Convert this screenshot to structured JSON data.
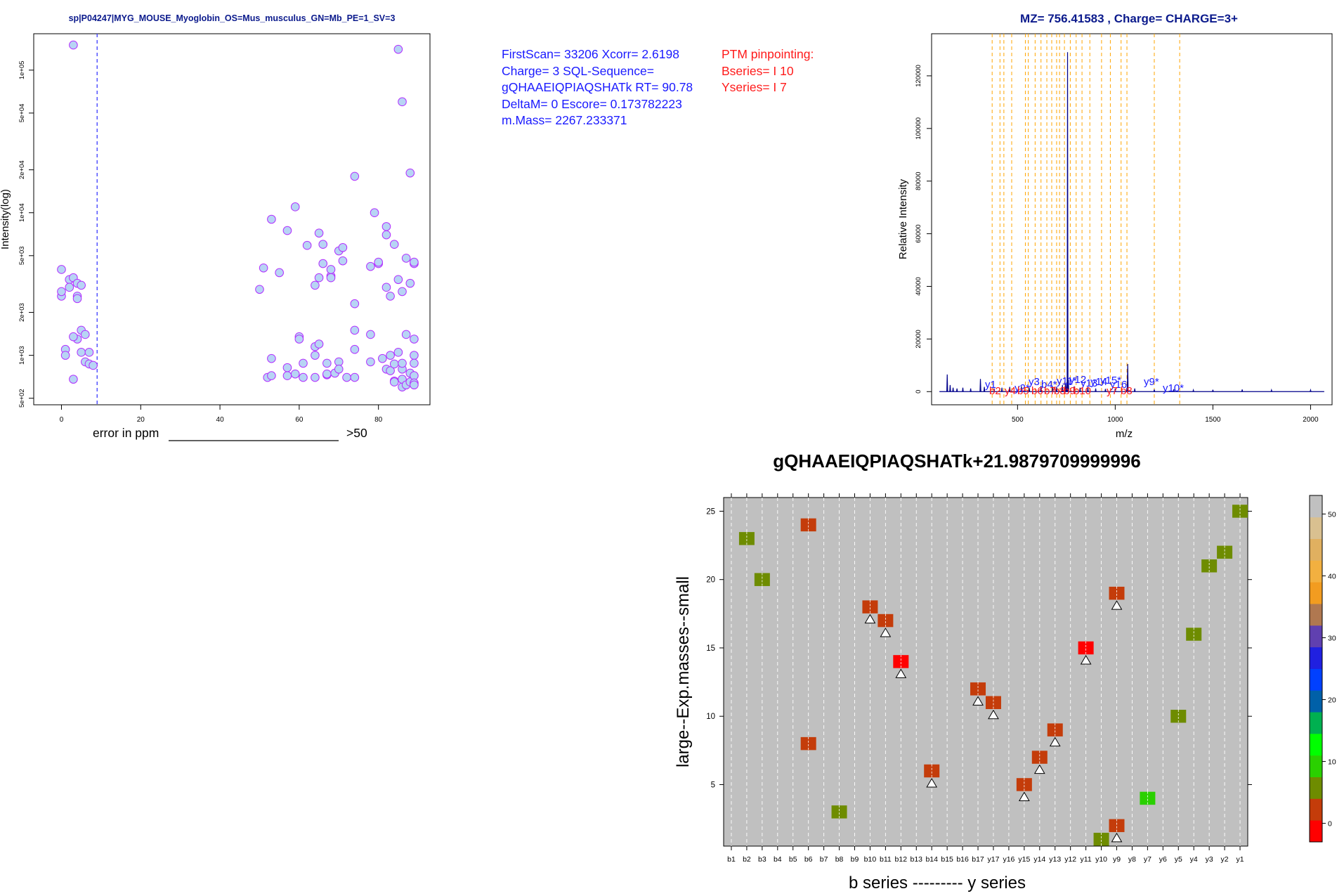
{
  "scatter": {
    "title": "sp|P04247|MYG_MOUSE_Myoglobin_OS=Mus_musculus_GN=Mb_PE=1_SV=3",
    "ylabel": "Intensity(log)",
    "xlabel": "error in ppm",
    "xlabel_suffix": ">50",
    "x_ticks": [
      "0",
      "20",
      "40",
      "60",
      "80"
    ],
    "y_ticks": [
      "5e+02",
      "1e+03",
      "2e+03",
      "5e+03",
      "1e+04",
      "2e+04",
      "5e+04",
      "1e+05"
    ],
    "colors": {
      "point_fill": "#b7d4f4",
      "point_stroke": "#b32cff",
      "vline": "#3a3aff"
    }
  },
  "info_blue": "FirstScan= 33206 Xcorr= 2.6198 Charge= 3 SQL-Sequence= gQHAAEIQPIAQSHATk RT= 90.78 DeltaM= 0 Escore= 0.173782223 m.Mass= 2267.233371",
  "info_red": "PTM pinpointing: Bseries= I 10 Yseries= I 7",
  "spectrum": {
    "title": "MZ= 756.41583 , Charge= CHARGE=3+",
    "xlabel": "m/z",
    "ylabel": "Relative Intensity",
    "x_ticks": [
      "500",
      "1000",
      "1500",
      "2000"
    ],
    "y_ticks": [
      "0",
      "20000",
      "40000",
      "60000",
      "80000",
      "100000",
      "120000"
    ],
    "annotations_blue": [
      "y1",
      "y2*",
      "y3",
      "b4*",
      "y11*",
      "y12",
      "y13",
      "y14",
      "y15*",
      "y16",
      "y9*",
      "y10*"
    ],
    "annotations_red": [
      "b2",
      "y4",
      "b5",
      "b6",
      "b7",
      "b8",
      "b9",
      "b10",
      "y7",
      "b8"
    ],
    "colors": {
      "line": "#00008b",
      "vline": "#ffa500",
      "blue_label": "#1a1aff",
      "red_label": "#ff1a1a"
    }
  },
  "heatmap": {
    "title": "gQHAAEIQPIAQSHATk+21.9879709999996",
    "xlabel": "b series --------- y series",
    "ylabel": "large--Exp.masses--small",
    "y_ticks": [
      "5",
      "10",
      "15",
      "20",
      "25"
    ],
    "colorbar_ticks": [
      "0",
      "10",
      "20",
      "30",
      "40",
      "50"
    ],
    "colorbar_colors": [
      "#ff0000",
      "#c43c0a",
      "#6e8c00",
      "#2ad000",
      "#00ff00",
      "#00b050",
      "#0060a8",
      "#0040ff",
      "#2020e0",
      "#6040b0",
      "#b07850",
      "#f29c20",
      "#f2b040",
      "#e0b060",
      "#d9c090",
      "#c0c0c0"
    ]
  },
  "chart_data": [
    {
      "type": "scatter",
      "title": "sp|P04247|MYG_MOUSE_Myoglobin_OS=Mus_musculus_GN=Mb_PE=1_SV=3",
      "xlabel": "error in ppm",
      "ylabel": "Intensity(log)",
      "xlim": [
        -7,
        93
      ],
      "ylim": [
        450,
        180000
      ],
      "y_scale": "log",
      "vline_x": 9,
      "points": [
        [
          3,
          150000
        ],
        [
          0,
          4000
        ],
        [
          0,
          2600
        ],
        [
          0,
          2800
        ],
        [
          1,
          1100
        ],
        [
          1,
          1000
        ],
        [
          2,
          3400
        ],
        [
          2,
          3000
        ],
        [
          3,
          3500
        ],
        [
          4,
          3200
        ],
        [
          4,
          2600
        ],
        [
          5,
          3100
        ],
        [
          4,
          2500
        ],
        [
          5,
          1500
        ],
        [
          6,
          1400
        ],
        [
          4,
          1300
        ],
        [
          3,
          1350
        ],
        [
          5,
          1050
        ],
        [
          6,
          900
        ],
        [
          7,
          1050
        ],
        [
          7,
          870
        ],
        [
          8,
          850
        ],
        [
          3,
          680
        ],
        [
          50,
          2900
        ],
        [
          51,
          4100
        ],
        [
          52,
          700
        ],
        [
          53,
          950
        ],
        [
          53,
          9000
        ],
        [
          53,
          720
        ],
        [
          55,
          3800
        ],
        [
          57,
          7500
        ],
        [
          57,
          720
        ],
        [
          57,
          820
        ],
        [
          59,
          11000
        ],
        [
          59,
          740
        ],
        [
          60,
          1350
        ],
        [
          60,
          1300
        ],
        [
          61,
          880
        ],
        [
          61,
          700
        ],
        [
          62,
          5900
        ],
        [
          64,
          3100
        ],
        [
          64,
          700
        ],
        [
          64,
          1000
        ],
        [
          65,
          7200
        ],
        [
          64,
          1150
        ],
        [
          65,
          3500
        ],
        [
          65,
          1200
        ],
        [
          66,
          6000
        ],
        [
          66,
          4400
        ],
        [
          67,
          880
        ],
        [
          67,
          730
        ],
        [
          67,
          740
        ],
        [
          68,
          3600
        ],
        [
          68,
          3500
        ],
        [
          68,
          4000
        ],
        [
          69,
          750
        ],
        [
          70,
          5400
        ],
        [
          70,
          900
        ],
        [
          70,
          800
        ],
        [
          71,
          5700
        ],
        [
          71,
          4600
        ],
        [
          72,
          700
        ],
        [
          74,
          18000
        ],
        [
          74,
          1100
        ],
        [
          74,
          2300
        ],
        [
          74,
          1500
        ],
        [
          74,
          700
        ],
        [
          78,
          4200
        ],
        [
          78,
          1400
        ],
        [
          78,
          900
        ],
        [
          79,
          10000
        ],
        [
          80,
          4400
        ],
        [
          80,
          4500
        ],
        [
          81,
          950
        ],
        [
          82,
          8000
        ],
        [
          82,
          7000
        ],
        [
          82,
          3000
        ],
        [
          82,
          800
        ],
        [
          83,
          2600
        ],
        [
          83,
          1000
        ],
        [
          83,
          780
        ],
        [
          84,
          6000
        ],
        [
          84,
          660
        ],
        [
          84,
          870
        ],
        [
          84,
          650
        ],
        [
          85,
          140000
        ],
        [
          85,
          1050
        ],
        [
          85,
          3400
        ],
        [
          86,
          2800
        ],
        [
          86,
          800
        ],
        [
          86,
          600
        ],
        [
          86,
          680
        ],
        [
          86,
          880
        ],
        [
          86,
          60000
        ],
        [
          87,
          4800
        ],
        [
          87,
          1400
        ],
        [
          87,
          620
        ],
        [
          88,
          19000
        ],
        [
          88,
          3200
        ],
        [
          88,
          650
        ],
        [
          88,
          750
        ],
        [
          89,
          4400
        ],
        [
          89,
          4500
        ],
        [
          89,
          1300
        ],
        [
          89,
          1000
        ],
        [
          89,
          880
        ],
        [
          89,
          720
        ],
        [
          89,
          640
        ],
        [
          89,
          620
        ]
      ]
    },
    {
      "type": "line",
      "title": "MZ= 756.41583 , Charge= CHARGE=3+",
      "xlabel": "m/z",
      "ylabel": "Relative Intensity",
      "xlim": [
        60,
        2110
      ],
      "ylim": [
        -5000,
        136000
      ],
      "peaks": [
        [
          140,
          6500
        ],
        [
          155,
          2500
        ],
        [
          170,
          1500
        ],
        [
          190,
          1200
        ],
        [
          220,
          1500
        ],
        [
          260,
          1200
        ],
        [
          310,
          4800
        ],
        [
          330,
          1800
        ],
        [
          380,
          1200
        ],
        [
          420,
          1500
        ],
        [
          460,
          1800
        ],
        [
          520,
          2000
        ],
        [
          560,
          1500
        ],
        [
          620,
          2200
        ],
        [
          680,
          2000
        ],
        [
          700,
          1800
        ],
        [
          730,
          2500
        ],
        [
          745,
          3200
        ],
        [
          752,
          3500
        ],
        [
          756,
          129000
        ],
        [
          760,
          4500
        ],
        [
          790,
          2000
        ],
        [
          820,
          1500
        ],
        [
          860,
          1800
        ],
        [
          900,
          1200
        ],
        [
          950,
          1000
        ],
        [
          1000,
          1200
        ],
        [
          1060,
          1500
        ],
        [
          1064,
          10500
        ],
        [
          1100,
          1200
        ],
        [
          1200,
          800
        ],
        [
          1300,
          900
        ],
        [
          1400,
          600
        ],
        [
          1500,
          700
        ],
        [
          1650,
          800
        ],
        [
          1800,
          600
        ],
        [
          2000,
          600
        ]
      ],
      "fragment_lines": [
        370,
        410,
        430,
        470,
        540,
        555,
        590,
        620,
        650,
        675,
        700,
        715,
        740,
        770,
        800,
        830,
        870,
        930,
        975,
        1030,
        1060,
        1200,
        1330
      ]
    },
    {
      "type": "heatmap",
      "title": "gQHAAEIQPIAQSHATk+21.9879709999996",
      "xlabel": "b series --------- y series",
      "ylabel": "large--Exp.masses--small",
      "categories": [
        "b1",
        "b2",
        "b3",
        "b4",
        "b5",
        "b6",
        "b7",
        "b8",
        "b9",
        "b10",
        "b11",
        "b12",
        "b13",
        "b14",
        "b15",
        "b16",
        "b17",
        "y17",
        "y16",
        "y15",
        "y14",
        "y13",
        "y12",
        "y11",
        "y10",
        "y9",
        "y8",
        "y7",
        "y6",
        "y5",
        "y4",
        "y3",
        "y2",
        "y1"
      ],
      "ylim": [
        0.5,
        26
      ],
      "cells": [
        {
          "col": "b2",
          "y": 23,
          "value": 5,
          "color": "#6e8c00"
        },
        {
          "col": "b3",
          "y": 20,
          "value": 5,
          "color": "#6e8c00"
        },
        {
          "col": "b6",
          "y": 24,
          "value": 2,
          "color": "#c43c0a"
        },
        {
          "col": "b6",
          "y": 8,
          "value": 2,
          "color": "#c43c0a"
        },
        {
          "col": "b8",
          "y": 3,
          "value": 5,
          "color": "#6e8c00"
        },
        {
          "col": "b10",
          "y": 18,
          "value": 2,
          "color": "#c43c0a",
          "marker": true
        },
        {
          "col": "b11",
          "y": 17,
          "value": 2,
          "color": "#c43c0a",
          "marker": true
        },
        {
          "col": "b12",
          "y": 14,
          "value": 0,
          "color": "#ff0000",
          "marker": true
        },
        {
          "col": "b14",
          "y": 6,
          "value": 2,
          "color": "#c43c0a",
          "marker": true
        },
        {
          "col": "b17",
          "y": 12,
          "value": 2,
          "color": "#c43c0a",
          "marker": true
        },
        {
          "col": "y17",
          "y": 11,
          "value": 2,
          "color": "#c43c0a",
          "marker": true
        },
        {
          "col": "y15",
          "y": 5,
          "value": 2,
          "color": "#c43c0a",
          "marker": true
        },
        {
          "col": "y14",
          "y": 7,
          "value": 2,
          "color": "#c43c0a",
          "marker": true
        },
        {
          "col": "y13",
          "y": 9,
          "value": 2,
          "color": "#c43c0a",
          "marker": true
        },
        {
          "col": "y11",
          "y": 15,
          "value": 0,
          "color": "#ff0000",
          "marker": true
        },
        {
          "col": "y10",
          "y": 1,
          "value": 5,
          "color": "#6e8c00"
        },
        {
          "col": "y9",
          "y": 19,
          "value": 2,
          "color": "#c43c0a",
          "marker": true
        },
        {
          "col": "y9",
          "y": 2,
          "value": 2,
          "color": "#c43c0a",
          "marker": true
        },
        {
          "col": "y7",
          "y": 4,
          "value": 8,
          "color": "#2ad000"
        },
        {
          "col": "y5",
          "y": 10,
          "value": 5,
          "color": "#6e8c00"
        },
        {
          "col": "y4",
          "y": 16,
          "value": 5,
          "color": "#6e8c00"
        },
        {
          "col": "y3",
          "y": 21,
          "value": 5,
          "color": "#6e8c00"
        },
        {
          "col": "y2",
          "y": 22,
          "value": 5,
          "color": "#6e8c00"
        },
        {
          "col": "y1",
          "y": 25,
          "value": 5,
          "color": "#6e8c00"
        }
      ],
      "colorbar_range": [
        -3,
        53
      ]
    }
  ]
}
